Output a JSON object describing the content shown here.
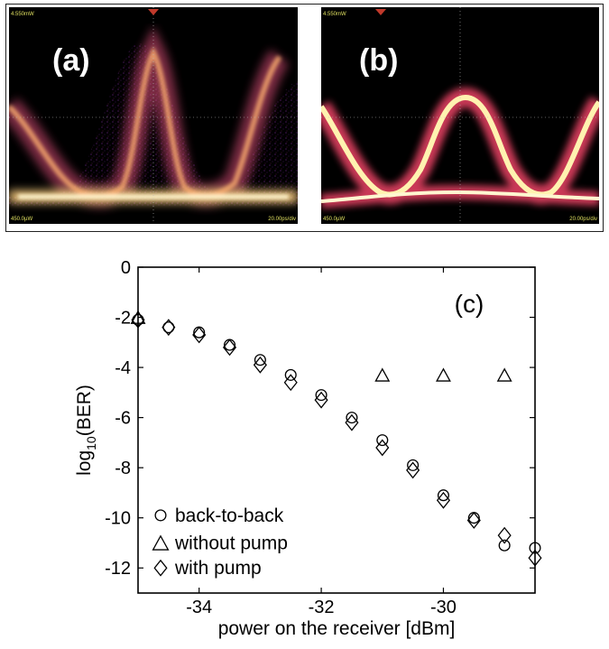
{
  "eye_panels": [
    {
      "label": "(a)",
      "top_left_readout": "4.550mW",
      "bottom_left_readout": "450.0µW",
      "bottom_right_readout": "20.00ps/div"
    },
    {
      "label": "(b)",
      "top_left_readout": "4.550mW",
      "bottom_left_readout": "450.0µW",
      "bottom_right_readout": "20.00ps/div"
    }
  ],
  "chart_data": {
    "type": "scatter",
    "annotation": "(c)",
    "xlabel": "power on the receiver [dBm]",
    "ylabel_main": "log",
    "ylabel_sub": "10",
    "ylabel_tail": "(BER)",
    "xlim": [
      -35,
      -28.5
    ],
    "ylim": [
      -13,
      0
    ],
    "xticks": [
      -34,
      -32,
      -30
    ],
    "yticks": [
      0,
      -2,
      -4,
      -6,
      -8,
      -10,
      -12
    ],
    "grid": false,
    "legend_position": "bottom-left",
    "series": [
      {
        "name": "back-to-back",
        "marker": "circle",
        "x": [
          -35,
          -34.5,
          -34,
          -33.5,
          -33,
          -32.5,
          -32,
          -31.5,
          -31,
          -30.5,
          -30,
          -29.5,
          -29,
          -28.5
        ],
        "y": [
          -2.1,
          -2.4,
          -2.6,
          -3.1,
          -3.7,
          -4.3,
          -5.1,
          -6.0,
          -6.9,
          -7.9,
          -9.1,
          -10.0,
          -11.1,
          -11.2
        ]
      },
      {
        "name": "without pump",
        "marker": "triangle",
        "x": [
          -35,
          -31,
          -30,
          -29
        ],
        "y": [
          -2.0,
          -4.3,
          -4.3,
          -4.3
        ]
      },
      {
        "name": "with pump",
        "marker": "diamond",
        "x": [
          -35,
          -34.5,
          -34,
          -33.5,
          -33,
          -32.5,
          -32,
          -31.5,
          -31,
          -30.5,
          -30,
          -29.5,
          -29,
          -28.5
        ],
        "y": [
          -2.1,
          -2.4,
          -2.7,
          -3.2,
          -3.9,
          -4.6,
          -5.3,
          -6.2,
          -7.2,
          -8.1,
          -9.3,
          -10.1,
          -10.7,
          -11.6
        ]
      }
    ]
  }
}
